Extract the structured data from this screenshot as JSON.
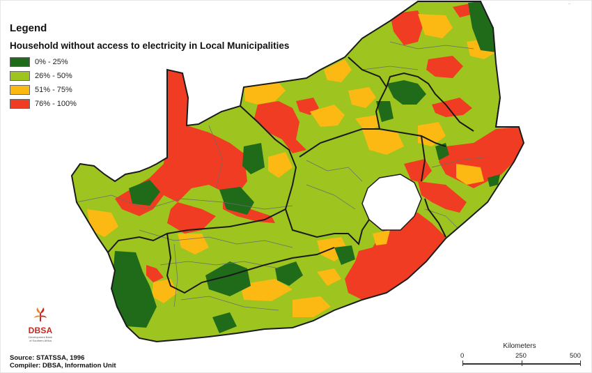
{
  "legend": {
    "title": "Legend",
    "subtitle": "Household without access to electricity in  Local Municipalities",
    "classes": [
      {
        "label": "0% - 25%",
        "color": "#1f6b1a"
      },
      {
        "label": "26% - 50%",
        "color": "#9dc41f"
      },
      {
        "label": "51% - 75%",
        "color": "#fcb813"
      },
      {
        "label": "76% - 100%",
        "color": "#f03c22"
      }
    ]
  },
  "logo": {
    "text": "DBSA",
    "small_line1": "Development Bank",
    "small_line2": "of Southern Africa"
  },
  "credits": {
    "source": "Source: STATSSA, 1996",
    "compiler": "Compiler: DBSA, Information Unit"
  },
  "scalebar": {
    "title": "Kilometers",
    "ticks": [
      "0",
      "250",
      "500"
    ]
  },
  "map": {
    "water_color": "#ffffff",
    "border_color": "#1a1a1a",
    "lesotho_color": "#ffffff"
  }
}
